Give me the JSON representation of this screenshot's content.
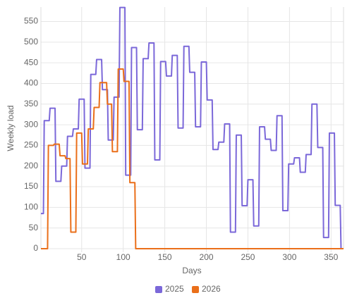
{
  "chart_data": {
    "type": "line",
    "y_label": "Weekly load",
    "x_label": "Days",
    "xlim": [
      1,
      365
    ],
    "xticks": [
      50,
      100,
      150,
      200,
      250,
      300,
      350
    ],
    "ylim": [
      0,
      585
    ],
    "yticks": [
      0,
      50,
      100,
      150,
      200,
      250,
      300,
      350,
      400,
      450,
      500,
      550
    ],
    "grid": true,
    "legend": "bottom",
    "series": [
      {
        "name": "2025",
        "color": "#7b68d9",
        "x": [
          1,
          4,
          5,
          11,
          12,
          18,
          19,
          25,
          26,
          32,
          33,
          39,
          40,
          46,
          47,
          53,
          54,
          60,
          61,
          67,
          68,
          74,
          75,
          81,
          82,
          88,
          89,
          95,
          96,
          102,
          103,
          109,
          110,
          116,
          117,
          123,
          124,
          130,
          131,
          137,
          138,
          144,
          145,
          151,
          152,
          158,
          159,
          165,
          166,
          172,
          173,
          179,
          180,
          186,
          187,
          193,
          194,
          200,
          201,
          207,
          208,
          214,
          215,
          221,
          222,
          228,
          229,
          235,
          236,
          242,
          243,
          249,
          250,
          256,
          257,
          263,
          264,
          270,
          271,
          277,
          278,
          284,
          285,
          291,
          292,
          298,
          299,
          305,
          306,
          312,
          313,
          319,
          320,
          326,
          327,
          333,
          334,
          340,
          341,
          347,
          348,
          354,
          355,
          361,
          362,
          365
        ],
        "values": [
          85,
          85,
          310,
          310,
          340,
          340,
          163,
          163,
          200,
          200,
          272,
          272,
          290,
          290,
          362,
          362,
          195,
          195,
          422,
          422,
          458,
          458,
          385,
          385,
          263,
          263,
          367,
          367,
          584,
          584,
          178,
          178,
          487,
          487,
          288,
          288,
          460,
          460,
          498,
          498,
          215,
          215,
          453,
          453,
          418,
          418,
          468,
          468,
          292,
          292,
          490,
          490,
          427,
          427,
          295,
          295,
          452,
          452,
          360,
          360,
          240,
          240,
          258,
          258,
          302,
          302,
          40,
          40,
          275,
          275,
          104,
          104,
          167,
          167,
          55,
          55,
          295,
          295,
          265,
          265,
          238,
          238,
          322,
          322,
          92,
          92,
          205,
          205,
          220,
          220,
          185,
          185,
          228,
          228,
          350,
          350,
          245,
          245,
          27,
          27,
          280,
          280,
          105,
          105,
          0,
          0
        ]
      },
      {
        "name": "2026",
        "color": "#ea6f1a",
        "x": [
          1,
          9,
          10,
          16,
          17,
          23,
          24,
          30,
          31,
          36,
          37,
          43,
          44,
          50,
          51,
          57,
          58,
          64,
          65,
          71,
          72,
          80,
          81,
          86,
          87,
          93,
          94,
          100,
          101,
          107,
          108,
          114,
          115,
          365
        ],
        "values": [
          0,
          0,
          250,
          250,
          253,
          253,
          225,
          225,
          218,
          218,
          40,
          40,
          280,
          280,
          205,
          205,
          290,
          290,
          342,
          342,
          402,
          402,
          350,
          350,
          235,
          235,
          435,
          435,
          405,
          405,
          160,
          160,
          0,
          0
        ]
      }
    ]
  }
}
